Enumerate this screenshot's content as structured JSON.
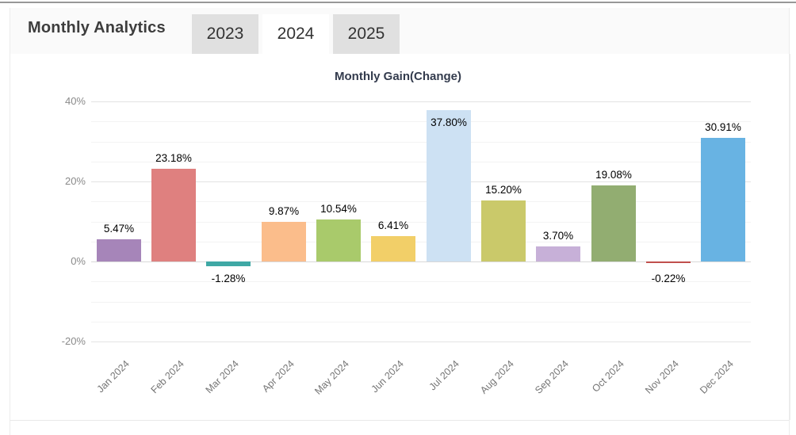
{
  "header": {
    "title": "Monthly Analytics",
    "tabs": [
      {
        "label": "2023",
        "active": false
      },
      {
        "label": "2024",
        "active": true
      },
      {
        "label": "2025",
        "active": false
      }
    ]
  },
  "chart_data": {
    "type": "bar",
    "title": "Monthly Gain(Change)",
    "categories": [
      "Jan 2024",
      "Feb 2024",
      "Mar 2024",
      "Apr 2024",
      "May 2024",
      "Jun 2024",
      "Jul 2024",
      "Aug 2024",
      "Sep 2024",
      "Oct 2024",
      "Nov 2024",
      "Dec 2024"
    ],
    "values": [
      5.47,
      23.18,
      -1.28,
      9.87,
      10.54,
      6.41,
      37.8,
      15.2,
      3.7,
      19.08,
      -0.22,
      30.91
    ],
    "value_labels": [
      "5.47%",
      "23.18%",
      "-1.28%",
      "9.87%",
      "10.54%",
      "6.41%",
      "37.80%",
      "15.20%",
      "3.70%",
      "19.08%",
      "-0.22%",
      "30.91%"
    ],
    "bar_colors": [
      "#a685b9",
      "#df807f",
      "#3fa8a5",
      "#fbbd8b",
      "#a9ca6b",
      "#f2cf68",
      "#cde1f3",
      "#cac96a",
      "#c7b0d8",
      "#92ad71",
      "#c0504d",
      "#68b3e3"
    ],
    "y_axis": {
      "ticks": [
        {
          "label": "40%",
          "value": 40
        },
        {
          "label": "20%",
          "value": 20
        },
        {
          "label": "0%",
          "value": 0
        },
        {
          "label": "-20%",
          "value": -20
        }
      ],
      "minor_step": 5,
      "range": [
        -25,
        42
      ]
    },
    "grid": true,
    "legend": false,
    "value_suffix": "%"
  }
}
